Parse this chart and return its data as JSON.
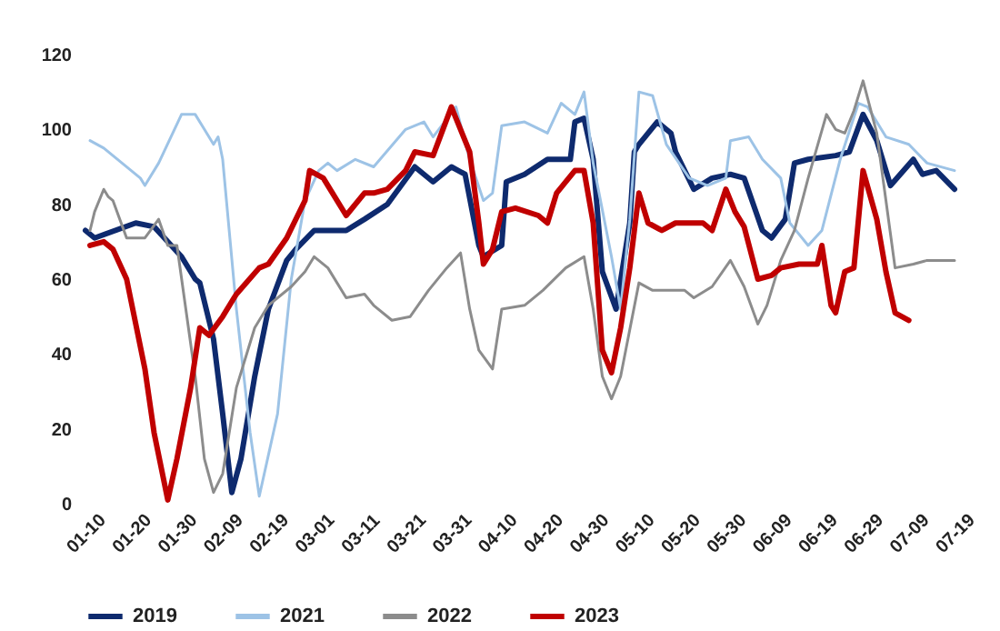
{
  "chart_data": {
    "type": "line",
    "xlim": [
      "--01-10",
      "--07-19"
    ],
    "ylim": [
      0,
      120
    ],
    "yticks": [
      0,
      20,
      40,
      60,
      80,
      100,
      120
    ],
    "xticks": [
      {
        "value": "--01-10",
        "label": "01-10"
      },
      {
        "value": "--01-20",
        "label": "01-20"
      },
      {
        "value": "--01-30",
        "label": "01-30"
      },
      {
        "value": "--02-09",
        "label": "02-09"
      },
      {
        "value": "--02-19",
        "label": "02-19"
      },
      {
        "value": "--03-01",
        "label": "03-01"
      },
      {
        "value": "--03-11",
        "label": "03-11"
      },
      {
        "value": "--03-21",
        "label": "03-21"
      },
      {
        "value": "--03-31",
        "label": "03-31"
      },
      {
        "value": "--04-10",
        "label": "04-10"
      },
      {
        "value": "--04-20",
        "label": "04-20"
      },
      {
        "value": "--04-30",
        "label": "04-30"
      },
      {
        "value": "--05-10",
        "label": "05-10"
      },
      {
        "value": "--05-20",
        "label": "05-20"
      },
      {
        "value": "--05-30",
        "label": "05-30"
      },
      {
        "value": "--06-09",
        "label": "06-09"
      },
      {
        "value": "--06-19",
        "label": "06-19"
      },
      {
        "value": "--06-29",
        "label": "06-29"
      },
      {
        "value": "--07-09",
        "label": "07-09"
      },
      {
        "value": "--07-19",
        "label": "07-19"
      }
    ],
    "grid": false,
    "legend": "bottom",
    "marker": "none",
    "line_style": "solid",
    "series": [
      {
        "name": "2019",
        "color": "#0e2a6e",
        "x": [
          "--01-10",
          "--01-12",
          "--01-21",
          "--01-25",
          "--01-31",
          "--02-03",
          "--02-04",
          "--02-07",
          "--02-09",
          "--02-11",
          "--02-13",
          "--02-16",
          "--02-19",
          "--02-23",
          "--02-25",
          "--03-01",
          "--03-08",
          "--03-12",
          "--03-17",
          "--03-23",
          "--03-27",
          "--03-31",
          "--04-03",
          "--04-06",
          "--04-07",
          "--04-11",
          "--04-12",
          "--04-16",
          "--04-21",
          "--04-26",
          "--04-27",
          "--04-29",
          "--05-01",
          "--05-03",
          "--05-06",
          "--05-09",
          "--05-10",
          "--05-11",
          "--05-15",
          "--05-18",
          "--05-19",
          "--05-23",
          "--05-27",
          "--05-31",
          "--06-03",
          "--06-07",
          "--06-09",
          "--06-12",
          "--06-14",
          "--06-17",
          "--06-23",
          "--06-26",
          "--06-29",
          "--07-02",
          "--07-05",
          "--07-10",
          "--07-12",
          "--07-15",
          "--07-19"
        ],
        "values": [
          73,
          71,
          75,
          74,
          66,
          60,
          59,
          44,
          24,
          3,
          12,
          34,
          52,
          65,
          68,
          73,
          73,
          76,
          80,
          90,
          86,
          90,
          88,
          69,
          66,
          69,
          86,
          88,
          92,
          92,
          102,
          103,
          92,
          62,
          52,
          75,
          94,
          96,
          102,
          99,
          94,
          84,
          87,
          88,
          87,
          73,
          71,
          76,
          91,
          92,
          93,
          94,
          104,
          97,
          85,
          92,
          88,
          89,
          84
        ]
      },
      {
        "name": "2021",
        "color": "#9dc3e6",
        "x": [
          "--01-11",
          "--01-14",
          "--01-22",
          "--01-23",
          "--01-26",
          "--01-31",
          "--02-03",
          "--02-05",
          "--02-07",
          "--02-08",
          "--02-09",
          "--02-12",
          "--02-15",
          "--02-17",
          "--02-21",
          "--02-24",
          "--02-27",
          "--03-02",
          "--03-04",
          "--03-06",
          "--03-10",
          "--03-14",
          "--03-21",
          "--03-25",
          "--03-27",
          "--04-01",
          "--04-04",
          "--04-07",
          "--04-09",
          "--04-11",
          "--04-16",
          "--04-21",
          "--04-24",
          "--04-27",
          "--04-29",
          "--05-01",
          "--05-05",
          "--05-07",
          "--05-09",
          "--05-11",
          "--05-14",
          "--05-17",
          "--05-22",
          "--05-26",
          "--05-30",
          "--05-31",
          "--06-04",
          "--06-07",
          "--06-11",
          "--06-13",
          "--06-17",
          "--06-20",
          "--06-24",
          "--06-28",
          "--06-30",
          "--07-04",
          "--07-09",
          "--07-13",
          "--07-19"
        ],
        "values": [
          97,
          95,
          87,
          85,
          91,
          104,
          104,
          100,
          96,
          98,
          92,
          52,
          19,
          2,
          24,
          60,
          81,
          89,
          91,
          89,
          92,
          90,
          100,
          102,
          98,
          106,
          92,
          81,
          83,
          101,
          102,
          99,
          107,
          104,
          110,
          91,
          66,
          52,
          76,
          110,
          109,
          96,
          87,
          85,
          87,
          97,
          98,
          92,
          87,
          75,
          69,
          73,
          92,
          107,
          106,
          98,
          96,
          91,
          89
        ]
      },
      {
        "name": "2022",
        "color": "#8c8c8c",
        "x": [
          "--01-11",
          "--01-12",
          "--01-14",
          "--01-15",
          "--01-16",
          "--01-19",
          "--01-23",
          "--01-26",
          "--01-28",
          "--01-30",
          "--02-03",
          "--02-05",
          "--02-07",
          "--02-09",
          "--02-12",
          "--02-16",
          "--02-19",
          "--02-24",
          "--02-27",
          "--03-01",
          "--03-04",
          "--03-08",
          "--03-12",
          "--03-14",
          "--03-18",
          "--03-22",
          "--03-26",
          "--03-30",
          "--04-02",
          "--04-04",
          "--04-06",
          "--04-09",
          "--04-11",
          "--04-16",
          "--04-20",
          "--04-25",
          "--04-29",
          "--05-01",
          "--05-03",
          "--05-05",
          "--05-07",
          "--05-11",
          "--05-14",
          "--05-21",
          "--05-23",
          "--05-27",
          "--05-31",
          "--06-03",
          "--06-06",
          "--06-08",
          "--06-11",
          "--06-14",
          "--06-17",
          "--06-21",
          "--06-23",
          "--06-25",
          "--06-27",
          "--06-29",
          "--07-02",
          "--07-04",
          "--07-06",
          "--07-10",
          "--07-13",
          "--07-19"
        ],
        "values": [
          73,
          78,
          84,
          82,
          81,
          71,
          71,
          76,
          69,
          69,
          34,
          12,
          3,
          8,
          31,
          47,
          53,
          58,
          62,
          66,
          63,
          55,
          56,
          53,
          49,
          50,
          57,
          63,
          67,
          52,
          41,
          36,
          52,
          53,
          57,
          63,
          66,
          52,
          34,
          28,
          34,
          59,
          57,
          57,
          55,
          58,
          65,
          58,
          48,
          53,
          65,
          73,
          87,
          104,
          100,
          99,
          105,
          113,
          99,
          81,
          63,
          64,
          65,
          65
        ]
      },
      {
        "name": "2023",
        "color": "#c00000",
        "x": [
          "--01-11",
          "--01-14",
          "--01-16",
          "--01-19",
          "--01-22",
          "--01-23",
          "--01-25",
          "--01-28",
          "--01-30",
          "--02-02",
          "--02-04",
          "--02-06",
          "--02-09",
          "--02-12",
          "--02-17",
          "--02-19",
          "--02-23",
          "--02-27",
          "--02-28",
          "--03-03",
          "--03-04",
          "--03-08",
          "--03-12",
          "--03-14",
          "--03-17",
          "--03-21",
          "--03-23",
          "--03-27",
          "--03-31",
          "--04-02",
          "--04-04",
          "--04-06",
          "--04-07",
          "--04-09",
          "--04-11",
          "--04-14",
          "--04-19",
          "--04-21",
          "--04-23",
          "--04-27",
          "--04-29",
          "--05-01",
          "--05-03",
          "--05-05",
          "--05-07",
          "--05-09",
          "--05-11",
          "--05-13",
          "--05-16",
          "--05-19",
          "--05-25",
          "--05-27",
          "--05-30",
          "--06-01",
          "--06-03",
          "--06-06",
          "--06-09",
          "--06-11",
          "--06-15",
          "--06-19",
          "--06-20",
          "--06-22",
          "--06-23",
          "--06-25",
          "--06-27",
          "--06-29",
          "--07-02",
          "--07-04",
          "--07-06",
          "--07-09"
        ],
        "values": [
          69,
          70,
          68,
          60,
          42,
          36,
          19,
          1,
          12,
          31,
          47,
          45,
          50,
          56,
          63,
          64,
          71,
          81,
          89,
          87,
          85,
          77,
          83,
          83,
          84,
          89,
          94,
          93,
          106,
          100,
          94,
          75,
          64,
          68,
          78,
          79,
          77,
          75,
          83,
          89,
          89,
          75,
          41,
          35,
          47,
          63,
          83,
          75,
          73,
          75,
          75,
          73,
          84,
          78,
          74,
          60,
          61,
          63,
          64,
          64,
          69,
          53,
          51,
          62,
          63,
          89,
          76,
          62,
          51,
          49
        ]
      }
    ]
  }
}
